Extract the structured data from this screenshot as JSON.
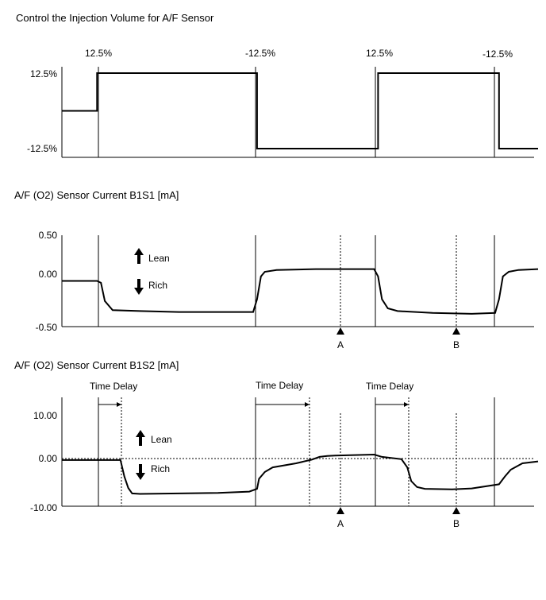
{
  "chart_data": [
    {
      "type": "line",
      "title": "Control the Injection Volume for A/F Sensor",
      "yticks": [
        "12.5%",
        "-12.5%"
      ],
      "ylim": [
        -12.5,
        12.5
      ],
      "step_labels": [
        "12.5%",
        "-12.5%",
        "12.5%",
        "-12.5%"
      ],
      "series": [
        {
          "x": [
            0,
            0.9,
            0.9,
            5.0,
            5.0,
            8.1,
            8.1,
            11.2,
            11.2,
            12.2
          ],
          "values": [
            0,
            0,
            12.5,
            12.5,
            -12.5,
            -12.5,
            12.5,
            12.5,
            -12.5,
            -12.5
          ]
        }
      ]
    },
    {
      "type": "line",
      "title": "A/F (O2) Sensor Current B1S1 [mA]",
      "yticks": [
        "0.50",
        "0.00",
        "-0.50"
      ],
      "ylim": [
        -0.5,
        0.5
      ],
      "annotations": {
        "lean": "Lean",
        "rich": "Rich",
        "marker_a": "A",
        "marker_b": "B"
      },
      "series": [
        {
          "x": [
            0,
            0.9,
            1.0,
            1.1,
            1.3,
            2.0,
            3.0,
            4.0,
            4.9,
            5.0,
            5.1,
            5.2,
            5.5,
            6.5,
            7.5,
            8.0,
            8.1,
            8.2,
            8.35,
            8.6,
            9.5,
            10.5,
            11.1,
            11.2,
            11.3,
            11.45,
            11.7,
            12.2
          ],
          "values": [
            0.0,
            0.0,
            -0.02,
            -0.22,
            -0.32,
            -0.33,
            -0.34,
            -0.34,
            -0.34,
            -0.2,
            0.05,
            0.1,
            0.12,
            0.13,
            0.13,
            0.13,
            0.05,
            -0.2,
            -0.3,
            -0.33,
            -0.35,
            -0.36,
            -0.35,
            -0.2,
            0.05,
            0.1,
            0.12,
            0.13
          ]
        }
      ]
    },
    {
      "type": "line",
      "title": "A/F (O2) Sensor Current B1S2 [mA]",
      "yticks": [
        "10.00",
        "0.00",
        "-10.00"
      ],
      "ylim": [
        -10,
        10
      ],
      "annotations": {
        "lean": "Lean",
        "rich": "Rich",
        "marker_a": "A",
        "marker_b": "B"
      },
      "time_delay_label": "Time Delay",
      "series": [
        {
          "x": [
            0,
            0.9,
            1.5,
            1.6,
            1.7,
            1.8,
            2.0,
            3.0,
            4.0,
            4.8,
            5.0,
            5.05,
            5.2,
            5.4,
            6.0,
            6.4,
            6.6,
            6.8,
            7.0,
            8.0,
            8.2,
            8.7,
            8.85,
            8.95,
            9.1,
            9.3,
            10.0,
            10.5,
            11.2,
            11.35,
            11.5,
            11.8,
            12.2
          ],
          "values": [
            0.1,
            0.1,
            0.1,
            -3.5,
            -6.0,
            -7.2,
            -7.3,
            -7.2,
            -7.1,
            -6.8,
            -6.2,
            -4.0,
            -2.5,
            -1.5,
            -0.6,
            0.2,
            0.8,
            1.0,
            1.1,
            1.3,
            0.8,
            0.3,
            -1.5,
            -4.5,
            -5.8,
            -6.2,
            -6.3,
            -6.1,
            -5.2,
            -3.5,
            -2.0,
            -0.6,
            -0.2
          ]
        }
      ]
    }
  ]
}
